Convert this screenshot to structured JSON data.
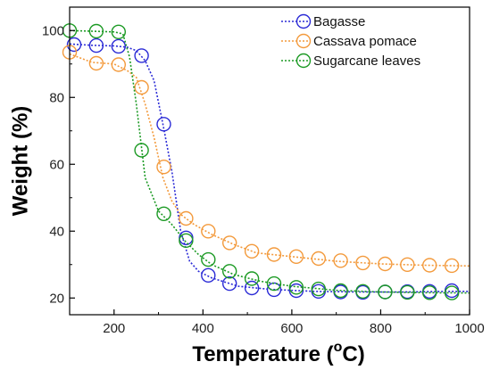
{
  "chart_data": {
    "type": "line",
    "xlabel": "Temperature (",
    "xlabel_sup": "o",
    "xlabel_suffix": "C)",
    "ylabel": "Weight (%)",
    "xlim": [
      100,
      1000
    ],
    "ylim": [
      15,
      107
    ],
    "xticks": [
      200,
      400,
      600,
      800,
      1000
    ],
    "yticks": [
      20,
      40,
      60,
      80,
      100
    ],
    "legend_position": "top-right",
    "grid": false,
    "series": [
      {
        "name": "Bagasse",
        "color": "#2b2bd6",
        "line": [
          [
            100,
            96
          ],
          [
            150,
            95.6
          ],
          [
            200,
            95.4
          ],
          [
            230,
            95
          ],
          [
            250,
            94
          ],
          [
            270,
            91
          ],
          [
            290,
            85
          ],
          [
            310,
            72
          ],
          [
            330,
            58
          ],
          [
            350,
            40
          ],
          [
            370,
            31
          ],
          [
            390,
            28
          ],
          [
            420,
            26
          ],
          [
            480,
            23.5
          ],
          [
            550,
            22.6
          ],
          [
            650,
            22
          ],
          [
            750,
            21.8
          ],
          [
            850,
            21.8
          ],
          [
            950,
            22
          ],
          [
            1000,
            22
          ]
        ],
        "markers": [
          [
            110,
            95.8
          ],
          [
            160,
            95.5
          ],
          [
            210,
            95.3
          ],
          [
            262,
            92.5
          ],
          [
            312,
            72
          ],
          [
            362,
            38
          ],
          [
            412,
            26.8
          ],
          [
            460,
            24.3
          ],
          [
            510,
            23
          ],
          [
            560,
            22.5
          ],
          [
            610,
            22.2
          ],
          [
            660,
            22
          ],
          [
            710,
            21.8
          ],
          [
            760,
            21.7
          ],
          [
            810,
            21.8
          ],
          [
            860,
            21.9
          ],
          [
            910,
            22
          ],
          [
            960,
            22.2
          ]
        ]
      },
      {
        "name": "Cassava pomace",
        "color": "#f39a3c",
        "line": [
          [
            100,
            93
          ],
          [
            150,
            90.5
          ],
          [
            200,
            90
          ],
          [
            230,
            88
          ],
          [
            250,
            86
          ],
          [
            270,
            78
          ],
          [
            290,
            68
          ],
          [
            310,
            56
          ],
          [
            330,
            49
          ],
          [
            350,
            45
          ],
          [
            380,
            42
          ],
          [
            420,
            39
          ],
          [
            470,
            36
          ],
          [
            520,
            33.5
          ],
          [
            600,
            32.4
          ],
          [
            700,
            31
          ],
          [
            800,
            30.2
          ],
          [
            900,
            29.8
          ],
          [
            1000,
            29.6
          ]
        ],
        "markers": [
          [
            100,
            93.5
          ],
          [
            160,
            90.2
          ],
          [
            210,
            89.8
          ],
          [
            262,
            83
          ],
          [
            312,
            59.2
          ],
          [
            362,
            43.8
          ],
          [
            412,
            40
          ],
          [
            460,
            36.5
          ],
          [
            510,
            34
          ],
          [
            560,
            33
          ],
          [
            610,
            32.4
          ],
          [
            660,
            31.8
          ],
          [
            710,
            31.2
          ],
          [
            760,
            30.5
          ],
          [
            810,
            30.2
          ],
          [
            860,
            30
          ],
          [
            910,
            29.8
          ],
          [
            960,
            29.7
          ]
        ]
      },
      {
        "name": "Sugarcane leaves",
        "color": "#1c9a24",
        "line": [
          [
            100,
            100
          ],
          [
            150,
            99.8
          ],
          [
            200,
            99.6
          ],
          [
            220,
            99
          ],
          [
            235,
            92
          ],
          [
            250,
            78
          ],
          [
            270,
            56
          ],
          [
            300,
            46
          ],
          [
            330,
            42
          ],
          [
            360,
            37
          ],
          [
            390,
            33
          ],
          [
            420,
            30
          ],
          [
            470,
            27
          ],
          [
            530,
            25
          ],
          [
            600,
            23.5
          ],
          [
            700,
            22.3
          ],
          [
            800,
            21.8
          ],
          [
            900,
            21.6
          ],
          [
            1000,
            21.5
          ]
        ],
        "markers": [
          [
            100,
            100
          ],
          [
            160,
            99.8
          ],
          [
            210,
            99.6
          ],
          [
            262,
            64.2
          ],
          [
            312,
            45.2
          ],
          [
            362,
            37.2
          ],
          [
            412,
            31.5
          ],
          [
            460,
            28
          ],
          [
            510,
            25.8
          ],
          [
            560,
            24.3
          ],
          [
            610,
            23.2
          ],
          [
            660,
            22.7
          ],
          [
            710,
            22.2
          ],
          [
            760,
            22
          ],
          [
            810,
            21.8
          ],
          [
            860,
            21.7
          ],
          [
            910,
            21.6
          ],
          [
            960,
            21.5
          ]
        ]
      }
    ]
  }
}
